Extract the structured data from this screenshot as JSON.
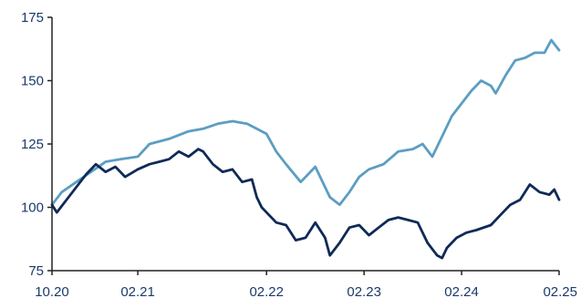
{
  "chart_data": {
    "type": "line",
    "title": "",
    "xlabel": "",
    "ylabel": "",
    "ylim": [
      75,
      175
    ],
    "y_ticks": [
      75,
      100,
      125,
      150,
      175
    ],
    "x_ticks": [
      "10.20",
      "02.21",
      "02.22",
      "02.23",
      "02.24",
      "02.25"
    ],
    "x_tick_positions": [
      0,
      0.88,
      2.2,
      3.2,
      4.2,
      5.2
    ],
    "xlim": [
      0,
      5.2
    ],
    "grid": false,
    "legend": "none",
    "series": [
      {
        "color": "#5b9ec2",
        "points": [
          [
            0.0,
            101
          ],
          [
            0.1,
            106
          ],
          [
            0.25,
            110
          ],
          [
            0.4,
            114
          ],
          [
            0.55,
            118
          ],
          [
            0.7,
            119
          ],
          [
            0.88,
            120
          ],
          [
            1.0,
            125
          ],
          [
            1.2,
            127
          ],
          [
            1.4,
            130
          ],
          [
            1.55,
            131
          ],
          [
            1.7,
            133
          ],
          [
            1.85,
            134
          ],
          [
            2.0,
            133
          ],
          [
            2.1,
            131
          ],
          [
            2.2,
            129
          ],
          [
            2.3,
            122
          ],
          [
            2.4,
            117
          ],
          [
            2.55,
            110
          ],
          [
            2.7,
            116
          ],
          [
            2.85,
            104
          ],
          [
            2.95,
            101
          ],
          [
            3.05,
            106
          ],
          [
            3.15,
            112
          ],
          [
            3.25,
            115
          ],
          [
            3.4,
            117
          ],
          [
            3.55,
            122
          ],
          [
            3.7,
            123
          ],
          [
            3.8,
            125
          ],
          [
            3.9,
            120
          ],
          [
            4.0,
            128
          ],
          [
            4.1,
            136
          ],
          [
            4.2,
            141
          ],
          [
            4.3,
            146
          ],
          [
            4.4,
            150
          ],
          [
            4.5,
            148
          ],
          [
            4.55,
            145
          ],
          [
            4.65,
            152
          ],
          [
            4.75,
            158
          ],
          [
            4.85,
            159
          ],
          [
            4.95,
            161
          ],
          [
            5.05,
            161
          ],
          [
            5.12,
            166
          ],
          [
            5.2,
            162
          ]
        ]
      },
      {
        "color": "#0f2a56",
        "points": [
          [
            0.0,
            101
          ],
          [
            0.05,
            98
          ],
          [
            0.15,
            103
          ],
          [
            0.25,
            108
          ],
          [
            0.35,
            113
          ],
          [
            0.45,
            117
          ],
          [
            0.55,
            114
          ],
          [
            0.65,
            116
          ],
          [
            0.75,
            112
          ],
          [
            0.88,
            115
          ],
          [
            1.0,
            117
          ],
          [
            1.1,
            118
          ],
          [
            1.2,
            119
          ],
          [
            1.3,
            122
          ],
          [
            1.4,
            120
          ],
          [
            1.5,
            123
          ],
          [
            1.55,
            122
          ],
          [
            1.65,
            117
          ],
          [
            1.75,
            114
          ],
          [
            1.85,
            115
          ],
          [
            1.95,
            110
          ],
          [
            2.05,
            111
          ],
          [
            2.1,
            104
          ],
          [
            2.15,
            100
          ],
          [
            2.2,
            98
          ],
          [
            2.3,
            94
          ],
          [
            2.4,
            93
          ],
          [
            2.5,
            87
          ],
          [
            2.6,
            88
          ],
          [
            2.7,
            94
          ],
          [
            2.8,
            88
          ],
          [
            2.85,
            81
          ],
          [
            2.95,
            86
          ],
          [
            3.05,
            92
          ],
          [
            3.15,
            93
          ],
          [
            3.25,
            89
          ],
          [
            3.35,
            92
          ],
          [
            3.45,
            95
          ],
          [
            3.55,
            96
          ],
          [
            3.65,
            95
          ],
          [
            3.75,
            94
          ],
          [
            3.85,
            86
          ],
          [
            3.95,
            81
          ],
          [
            4.0,
            80
          ],
          [
            4.05,
            84
          ],
          [
            4.15,
            88
          ],
          [
            4.25,
            90
          ],
          [
            4.35,
            91
          ],
          [
            4.5,
            93
          ],
          [
            4.6,
            97
          ],
          [
            4.7,
            101
          ],
          [
            4.8,
            103
          ],
          [
            4.9,
            109
          ],
          [
            5.0,
            106
          ],
          [
            5.1,
            105
          ],
          [
            5.15,
            107
          ],
          [
            5.2,
            103
          ]
        ]
      }
    ]
  }
}
